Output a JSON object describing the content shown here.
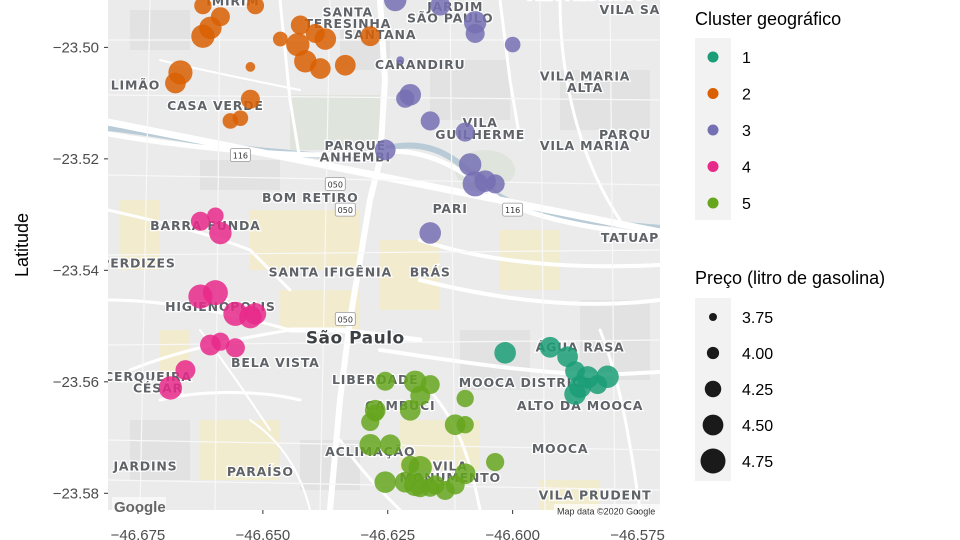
{
  "chart_data": {
    "type": "scatter",
    "title": "",
    "xlabel": "",
    "ylabel": "Latitude",
    "xlim": [
      -46.681,
      -46.5705
    ],
    "ylim": [
      -23.583,
      -23.4915
    ],
    "x_ticks": [
      -46.675,
      -46.65,
      -46.625,
      -46.6,
      -46.575
    ],
    "x_tick_labels": [
      "−46.675",
      "−46.650",
      "−46.625",
      "−46.600",
      "−46.575"
    ],
    "y_ticks": [
      -23.5,
      -23.52,
      -23.54,
      -23.56,
      -23.58
    ],
    "y_tick_labels": [
      "−23.50",
      "−23.52",
      "−23.54",
      "−23.56",
      "−23.58"
    ],
    "background": "Google map tiles (roadmap, grayscale)",
    "map_attribution": "Map data ©2020 Google",
    "map_logo": "Google",
    "map_labels": [
      {
        "text": "IMIRIM",
        "lon": -46.656,
        "lat": -23.4925
      },
      {
        "text": "SANTA",
        "lon": -46.633,
        "lat": -23.4945
      },
      {
        "text": "TERESINHA",
        "lon": -46.633,
        "lat": -23.4965
      },
      {
        "text": "JARDIM",
        "lon": -46.6115,
        "lat": -23.4935
      },
      {
        "text": "SÃO PAULO",
        "lon": -46.6125,
        "lat": -23.4955
      },
      {
        "text": "VILA MEDEIROS",
        "lon": -46.5855,
        "lat": -23.4915
      },
      {
        "text": "VILA SAB",
        "lon": -46.5755,
        "lat": -23.494
      },
      {
        "text": "SANTANA",
        "lon": -46.6265,
        "lat": -23.4985
      },
      {
        "text": "CARANDIRU",
        "lon": -46.6185,
        "lat": -23.5039
      },
      {
        "text": "LIMÃO",
        "lon": -46.6755,
        "lat": -23.5076
      },
      {
        "text": "VILA MARIA",
        "lon": -46.5855,
        "lat": -23.5059
      },
      {
        "text": "ALTA",
        "lon": -46.5855,
        "lat": -23.508
      },
      {
        "text": "CASA VERDE",
        "lon": -46.6595,
        "lat": -23.5112
      },
      {
        "text": "VILA",
        "lon": -46.6065,
        "lat": -23.5143
      },
      {
        "text": "GUILHERME",
        "lon": -46.6065,
        "lat": -23.5164
      },
      {
        "text": "PARQU",
        "lon": -46.5775,
        "lat": -23.5164
      },
      {
        "text": "VILA MARIA",
        "lon": -46.5855,
        "lat": -23.5184
      },
      {
        "text": "BOM RETIRO",
        "lon": -46.6405,
        "lat": -23.5277
      },
      {
        "text": "PARI",
        "lon": -46.6125,
        "lat": -23.5297
      },
      {
        "text": "BARRA FUNDA",
        "lon": -46.6615,
        "lat": -23.5328
      },
      {
        "text": "TATUAP",
        "lon": -46.5765,
        "lat": -23.5349
      },
      {
        "text": "SANTA IFIGÊNIA",
        "lon": -46.6365,
        "lat": -23.5411
      },
      {
        "text": "BRÁS",
        "lon": -46.6165,
        "lat": -23.5411
      },
      {
        "text": "PERDIZES",
        "lon": -46.675,
        "lat": -23.5395
      },
      {
        "text": "HIGIENÓPOLIS",
        "lon": -46.6585,
        "lat": -23.5473
      },
      {
        "text": "São Paulo",
        "lon": -46.6315,
        "lat": -23.5531
      },
      {
        "text": "ÁGUA RASA",
        "lon": -46.5865,
        "lat": -23.5546
      },
      {
        "text": "BELA VISTA",
        "lon": -46.6475,
        "lat": -23.5573
      },
      {
        "text": "CERQUEIRA",
        "lon": -46.673,
        "lat": -23.5599
      },
      {
        "text": "CÉSAR",
        "lon": -46.671,
        "lat": -23.5619
      },
      {
        "text": "LIBERDADE",
        "lon": -46.6275,
        "lat": -23.5604
      },
      {
        "text": "MOOCA DISTRICT",
        "lon": -46.5975,
        "lat": -23.5609
      },
      {
        "text": "CAMBUCI",
        "lon": -46.6225,
        "lat": -23.5651
      },
      {
        "text": "ALTO DA MOOCA",
        "lon": -46.5865,
        "lat": -23.5651
      },
      {
        "text": "ACLIMAÇÃO",
        "lon": -46.6285,
        "lat": -23.5733
      },
      {
        "text": "MOOCA",
        "lon": -46.5905,
        "lat": -23.5728
      },
      {
        "text": "JARDINS",
        "lon": -46.6735,
        "lat": -23.5759
      },
      {
        "text": "VILA",
        "lon": -46.6125,
        "lat": -23.5759
      },
      {
        "text": "PARAÍSO",
        "lon": -46.6505,
        "lat": -23.5769
      },
      {
        "text": "MONUMENTO",
        "lon": -46.6125,
        "lat": -23.578
      },
      {
        "text": "VILA PRUDENT",
        "lon": -46.5835,
        "lat": -23.5811
      },
      {
        "text": "PARQUE",
        "lon": -46.6315,
        "lat": -23.5184
      },
      {
        "text": "ANHEMBI",
        "lon": -46.6315,
        "lat": -23.5205
      }
    ],
    "route_shields": [
      {
        "text": "116",
        "lon": -46.6545,
        "lat": -23.5194
      },
      {
        "text": "050",
        "lon": -46.6355,
        "lat": -23.5246
      },
      {
        "text": "050",
        "lon": -46.6335,
        "lat": -23.5292
      },
      {
        "text": "116",
        "lon": -46.6,
        "lat": -23.5292
      },
      {
        "text": "050",
        "lon": -46.6335,
        "lat": -23.5488
      }
    ],
    "legends": {
      "cluster": {
        "title": "Cluster geográfico",
        "entries": [
          {
            "label": "1",
            "color": "#1B9E77"
          },
          {
            "label": "2",
            "color": "#D95F02"
          },
          {
            "label": "3",
            "color": "#7570B3"
          },
          {
            "label": "4",
            "color": "#E7298A"
          },
          {
            "label": "5",
            "color": "#66A61E"
          }
        ]
      },
      "size": {
        "title": "Preço (litro de gasolina)",
        "entries": [
          {
            "label": "3.75",
            "value": 3.75
          },
          {
            "label": "4.00",
            "value": 4.0
          },
          {
            "label": "4.25",
            "value": 4.25
          },
          {
            "label": "4.50",
            "value": 4.5
          },
          {
            "label": "4.75",
            "value": 4.75
          }
        ]
      }
    },
    "series": [
      {
        "name": "1",
        "color": "#1B9E77",
        "points": [
          {
            "x": -46.6015,
            "y": -23.5548,
            "price": 4.55
          },
          {
            "x": -46.5925,
            "y": -23.5538,
            "price": 4.5
          },
          {
            "x": -46.589,
            "y": -23.5555,
            "price": 4.5
          },
          {
            "x": -46.5875,
            "y": -23.5581,
            "price": 4.45
          },
          {
            "x": -46.585,
            "y": -23.5592,
            "price": 4.6
          },
          {
            "x": -46.581,
            "y": -23.5591,
            "price": 4.6
          },
          {
            "x": -46.5865,
            "y": -23.5609,
            "price": 4.6
          },
          {
            "x": -46.5875,
            "y": -23.5622,
            "price": 4.55
          },
          {
            "x": -46.583,
            "y": -23.5605,
            "price": 4.4
          }
        ]
      },
      {
        "name": "2",
        "color": "#D95F02",
        "points": [
          {
            "x": -46.662,
            "y": -23.4925,
            "price": 4.3
          },
          {
            "x": -46.6585,
            "y": -23.4945,
            "price": 4.4
          },
          {
            "x": -46.6605,
            "y": -23.4965,
            "price": 4.6
          },
          {
            "x": -46.662,
            "y": -23.498,
            "price": 4.65
          },
          {
            "x": -46.6515,
            "y": -23.4925,
            "price": 4.3
          },
          {
            "x": -46.6425,
            "y": -23.496,
            "price": 4.4
          },
          {
            "x": -46.6395,
            "y": -23.4975,
            "price": 4.4
          },
          {
            "x": -46.6375,
            "y": -23.4985,
            "price": 4.55
          },
          {
            "x": -46.643,
            "y": -23.4995,
            "price": 4.65
          },
          {
            "x": -46.6465,
            "y": -23.4985,
            "price": 4.15
          },
          {
            "x": -46.6415,
            "y": -23.5025,
            "price": 4.6
          },
          {
            "x": -46.6285,
            "y": -23.498,
            "price": 4.45
          },
          {
            "x": -46.6335,
            "y": -23.5032,
            "price": 4.5
          },
          {
            "x": -46.6385,
            "y": -23.5038,
            "price": 4.5
          },
          {
            "x": -46.6525,
            "y": -23.5035,
            "price": 3.85
          },
          {
            "x": -46.6665,
            "y": -23.5045,
            "price": 4.7
          },
          {
            "x": -46.6675,
            "y": -23.5064,
            "price": 4.5
          },
          {
            "x": -46.6525,
            "y": -23.5093,
            "price": 4.4
          },
          {
            "x": -46.6545,
            "y": -23.5127,
            "price": 4.2
          },
          {
            "x": -46.6565,
            "y": -23.5132,
            "price": 4.2
          }
        ]
      },
      {
        "name": "3",
        "color": "#7570B3",
        "points": [
          {
            "x": -46.6235,
            "y": -23.4915,
            "price": 4.6
          },
          {
            "x": -46.6145,
            "y": -23.4925,
            "price": 4.45
          },
          {
            "x": -46.6075,
            "y": -23.4955,
            "price": 4.6
          },
          {
            "x": -46.6075,
            "y": -23.4975,
            "price": 4.4
          },
          {
            "x": -46.6,
            "y": -23.4995,
            "price": 4.2
          },
          {
            "x": -46.6225,
            "y": -23.5023,
            "price": 3.75
          },
          {
            "x": -46.6205,
            "y": -23.5085,
            "price": 4.55
          },
          {
            "x": -46.6215,
            "y": -23.5092,
            "price": 4.35
          },
          {
            "x": -46.6165,
            "y": -23.5132,
            "price": 4.4
          },
          {
            "x": -46.6095,
            "y": -23.5152,
            "price": 4.4
          },
          {
            "x": -46.6255,
            "y": -23.5184,
            "price": 4.5
          },
          {
            "x": -46.6085,
            "y": -23.521,
            "price": 4.6
          },
          {
            "x": -46.6055,
            "y": -23.524,
            "price": 4.55
          },
          {
            "x": -46.6075,
            "y": -23.5245,
            "price": 4.75
          },
          {
            "x": -46.6035,
            "y": -23.5245,
            "price": 4.4
          },
          {
            "x": -46.6165,
            "y": -23.5333,
            "price": 4.55
          }
        ]
      },
      {
        "name": "4",
        "color": "#E7298A",
        "points": [
          {
            "x": -46.6625,
            "y": -23.5312,
            "price": 4.4
          },
          {
            "x": -46.6595,
            "y": -23.5302,
            "price": 4.25
          },
          {
            "x": -46.6585,
            "y": -23.5333,
            "price": 4.6
          },
          {
            "x": -46.6625,
            "y": -23.5447,
            "price": 4.7
          },
          {
            "x": -46.6595,
            "y": -23.544,
            "price": 4.75
          },
          {
            "x": -46.6555,
            "y": -23.5478,
            "price": 4.7
          },
          {
            "x": -46.6525,
            "y": -23.5484,
            "price": 4.6
          },
          {
            "x": -46.6515,
            "y": -23.5478,
            "price": 4.55
          },
          {
            "x": -46.6585,
            "y": -23.5528,
            "price": 4.35
          },
          {
            "x": -46.6555,
            "y": -23.5539,
            "price": 4.4
          },
          {
            "x": -46.6655,
            "y": -23.5579,
            "price": 4.45
          },
          {
            "x": -46.6685,
            "y": -23.5611,
            "price": 4.65
          },
          {
            "x": -46.6605,
            "y": -23.5534,
            "price": 4.5
          }
        ]
      },
      {
        "name": "5",
        "color": "#66A61E",
        "points": [
          {
            "x": -46.6255,
            "y": -23.5599,
            "price": 4.4
          },
          {
            "x": -46.6195,
            "y": -23.56,
            "price": 4.6
          },
          {
            "x": -46.6185,
            "y": -23.5625,
            "price": 4.45
          },
          {
            "x": -46.6165,
            "y": -23.5605,
            "price": 4.4
          },
          {
            "x": -46.6275,
            "y": -23.5651,
            "price": 4.5
          },
          {
            "x": -46.6275,
            "y": -23.5656,
            "price": 4.3
          },
          {
            "x": -46.6285,
            "y": -23.5672,
            "price": 4.35
          },
          {
            "x": -46.6205,
            "y": -23.5651,
            "price": 4.5
          },
          {
            "x": -46.6095,
            "y": -23.563,
            "price": 4.3
          },
          {
            "x": -46.6115,
            "y": -23.5677,
            "price": 4.5
          },
          {
            "x": -46.6095,
            "y": -23.5677,
            "price": 4.3
          },
          {
            "x": -46.6285,
            "y": -23.5713,
            "price": 4.55
          },
          {
            "x": -46.6245,
            "y": -23.5713,
            "price": 4.5
          },
          {
            "x": -46.6205,
            "y": -23.5749,
            "price": 4.35
          },
          {
            "x": -46.6185,
            "y": -23.5754,
            "price": 4.65
          },
          {
            "x": -46.6035,
            "y": -23.5744,
            "price": 4.35
          },
          {
            "x": -46.6095,
            "y": -23.5765,
            "price": 4.5
          },
          {
            "x": -46.6115,
            "y": -23.5785,
            "price": 4.4
          },
          {
            "x": -46.6255,
            "y": -23.578,
            "price": 4.55
          },
          {
            "x": -46.6215,
            "y": -23.578,
            "price": 4.5
          },
          {
            "x": -46.6195,
            "y": -23.5785,
            "price": 4.6
          },
          {
            "x": -46.6185,
            "y": -23.579,
            "price": 4.4
          },
          {
            "x": -46.6155,
            "y": -23.5785,
            "price": 4.4
          },
          {
            "x": -46.6135,
            "y": -23.5795,
            "price": 4.4
          },
          {
            "x": -46.6165,
            "y": -23.579,
            "price": 4.35
          }
        ]
      }
    ]
  }
}
